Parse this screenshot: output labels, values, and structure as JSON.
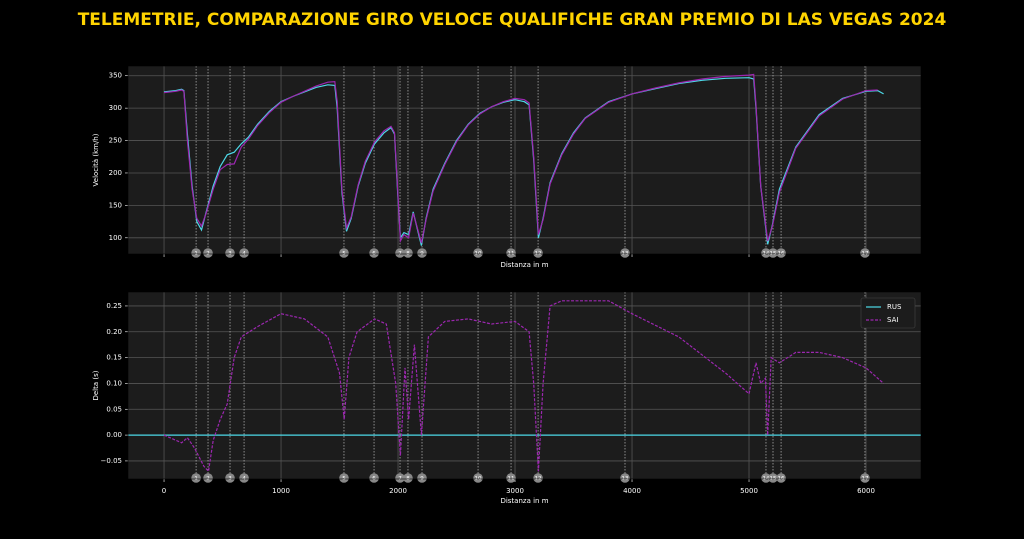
{
  "chart_data": [
    {
      "type": "line",
      "title": "TELEMETRIE, COMPARAZIONE GIRO VELOCE QUALIFICHE GRAN PREMIO DI LAS VEGAS 2024",
      "xlabel": "Distanza in m",
      "ylabel": "Velocità (km/h)",
      "xlim": [
        -308,
        6470
      ],
      "ylim": [
        75,
        365
      ],
      "xticks": [
        0,
        1000,
        2000,
        3000,
        4000,
        5000,
        6000
      ],
      "xtick_labels_visible": false,
      "yticks": [
        100,
        150,
        200,
        250,
        300,
        350
      ],
      "grid": true,
      "corners": {
        "positions": [
          274,
          376,
          564,
          684,
          1538,
          1795,
          2017,
          2085,
          2205,
          2684,
          2966,
          3197,
          3940,
          5145,
          5205,
          5274,
          5991
        ],
        "labels": [
          "1",
          "2",
          "3",
          "4",
          "5",
          "6",
          "7",
          "8",
          "9",
          "10",
          "11",
          "12",
          "13",
          "14",
          "15",
          "16",
          "17"
        ]
      },
      "series": [
        {
          "color": "#4dd9e8",
          "linestyle": "solid",
          "x": [
            0,
            100,
            150,
            170,
            200,
            240,
            280,
            320,
            360,
            420,
            480,
            540,
            600,
            660,
            720,
            800,
            900,
            1000,
            1100,
            1200,
            1300,
            1400,
            1460,
            1480,
            1520,
            1560,
            1600,
            1660,
            1720,
            1800,
            1880,
            1940,
            1970,
            2000,
            2020,
            2050,
            2090,
            2130,
            2170,
            2200,
            2240,
            2300,
            2400,
            2500,
            2600,
            2700,
            2800,
            2900,
            3000,
            3080,
            3120,
            3160,
            3200,
            3240,
            3300,
            3400,
            3500,
            3600,
            3800,
            4000,
            4200,
            4400,
            4600,
            4800,
            5000,
            5040,
            5060,
            5100,
            5160,
            5200,
            5260,
            5400,
            5600,
            5800,
            6000,
            6100,
            6150
          ],
          "values": [
            325,
            327,
            329,
            327,
            260,
            180,
            125,
            112,
            140,
            180,
            210,
            228,
            232,
            245,
            255,
            275,
            295,
            310,
            318,
            325,
            332,
            336,
            335,
            300,
            170,
            110,
            130,
            180,
            215,
            245,
            262,
            270,
            260,
            160,
            100,
            108,
            105,
            140,
            110,
            88,
            130,
            175,
            215,
            250,
            275,
            292,
            302,
            309,
            313,
            310,
            305,
            220,
            100,
            130,
            185,
            230,
            262,
            285,
            310,
            322,
            330,
            338,
            343,
            346,
            347,
            345,
            300,
            180,
            90,
            120,
            175,
            240,
            290,
            315,
            326,
            327,
            322
          ]
        },
        {
          "color": "#9c27b0",
          "linestyle": "solid",
          "x": [
            0,
            100,
            150,
            170,
            200,
            240,
            280,
            320,
            360,
            420,
            480,
            540,
            600,
            660,
            720,
            800,
            900,
            1000,
            1100,
            1200,
            1300,
            1400,
            1460,
            1480,
            1520,
            1560,
            1600,
            1660,
            1720,
            1800,
            1880,
            1940,
            1970,
            2000,
            2020,
            2050,
            2090,
            2130,
            2170,
            2200,
            2240,
            2300,
            2400,
            2500,
            2600,
            2700,
            2800,
            2900,
            3000,
            3080,
            3120,
            3160,
            3200,
            3240,
            3300,
            3400,
            3500,
            3600,
            3800,
            4000,
            4200,
            4400,
            4600,
            4800,
            5000,
            5040,
            5060,
            5100,
            5160,
            5200,
            5260,
            5400,
            5600,
            5800,
            6000,
            6100
          ],
          "values": [
            324,
            326,
            328,
            326,
            250,
            175,
            130,
            118,
            138,
            175,
            205,
            213,
            214,
            240,
            252,
            273,
            293,
            309,
            318,
            326,
            334,
            340,
            341,
            310,
            175,
            115,
            132,
            182,
            218,
            248,
            265,
            272,
            262,
            165,
            95,
            105,
            100,
            138,
            112,
            92,
            128,
            172,
            213,
            248,
            274,
            291,
            302,
            310,
            315,
            313,
            308,
            225,
            105,
            128,
            183,
            228,
            260,
            284,
            309,
            322,
            331,
            339,
            345,
            349,
            351,
            352,
            305,
            180,
            95,
            118,
            170,
            238,
            288,
            314,
            327,
            328
          ]
        }
      ]
    },
    {
      "type": "line",
      "xlabel": "Distanza in m",
      "ylabel": "Delta (s)",
      "xlim": [
        -308,
        6470
      ],
      "ylim": [
        -0.085,
        0.277
      ],
      "xticks": [
        0,
        1000,
        2000,
        3000,
        4000,
        5000,
        6000
      ],
      "xtick_labels_visible": true,
      "yticks": [
        0.25,
        {
          "value": 0.2,
          "label": "0.20"
        },
        0.15,
        {
          "value": 0.1,
          "label": "0.10"
        },
        0.05,
        {
          "value": 0,
          "label": "0.00"
        },
        {
          "value": -0.05,
          "label": "−0.05"
        }
      ],
      "grid": true,
      "legend": "upper right",
      "corners": {
        "positions": [
          274,
          376,
          564,
          684,
          1538,
          1795,
          2017,
          2085,
          2205,
          2684,
          2966,
          3197,
          3940,
          5145,
          5205,
          5274,
          5991
        ],
        "labels": [
          "1",
          "2",
          "3",
          "4",
          "5",
          "6",
          "7",
          "8",
          "9",
          "10",
          "11",
          "12",
          "13",
          "14",
          "15",
          "16",
          "17"
        ]
      },
      "series": [
        {
          "name": "RUS",
          "color": "#4dd9e8",
          "linestyle": "solid",
          "x": [
            -308,
            6470
          ],
          "values": [
            0,
            0
          ]
        },
        {
          "name": "SAI",
          "color": "#9c27b0",
          "linestyle": "dashed",
          "x": [
            0,
            150,
            200,
            260,
            340,
            380,
            420,
            480,
            540,
            600,
            660,
            800,
            1000,
            1200,
            1400,
            1500,
            1540,
            1580,
            1650,
            1800,
            1900,
            1980,
            2020,
            2060,
            2090,
            2140,
            2200,
            2260,
            2400,
            2600,
            2800,
            3000,
            3120,
            3160,
            3200,
            3240,
            3300,
            3400,
            3800,
            4000,
            4400,
            4800,
            5000,
            5060,
            5100,
            5140,
            5160,
            5190,
            5260,
            5400,
            5600,
            5800,
            6000,
            6150
          ],
          "values": [
            0,
            -0.015,
            -0.005,
            -0.025,
            -0.06,
            -0.07,
            -0.01,
            0.03,
            0.06,
            0.15,
            0.19,
            0.21,
            0.235,
            0.225,
            0.19,
            0.12,
            0.03,
            0.15,
            0.2,
            0.225,
            0.215,
            0.1,
            -0.04,
            0.13,
            0.03,
            0.175,
            0,
            0.19,
            0.22,
            0.225,
            0.215,
            0.22,
            0.2,
            0.1,
            -0.07,
            0.1,
            0.25,
            0.26,
            0.26,
            0.235,
            0.19,
            0.12,
            0.08,
            0.14,
            0.1,
            0.11,
            0,
            0.15,
            0.14,
            0.16,
            0.16,
            0.15,
            0.13,
            0.1
          ]
        }
      ]
    }
  ]
}
